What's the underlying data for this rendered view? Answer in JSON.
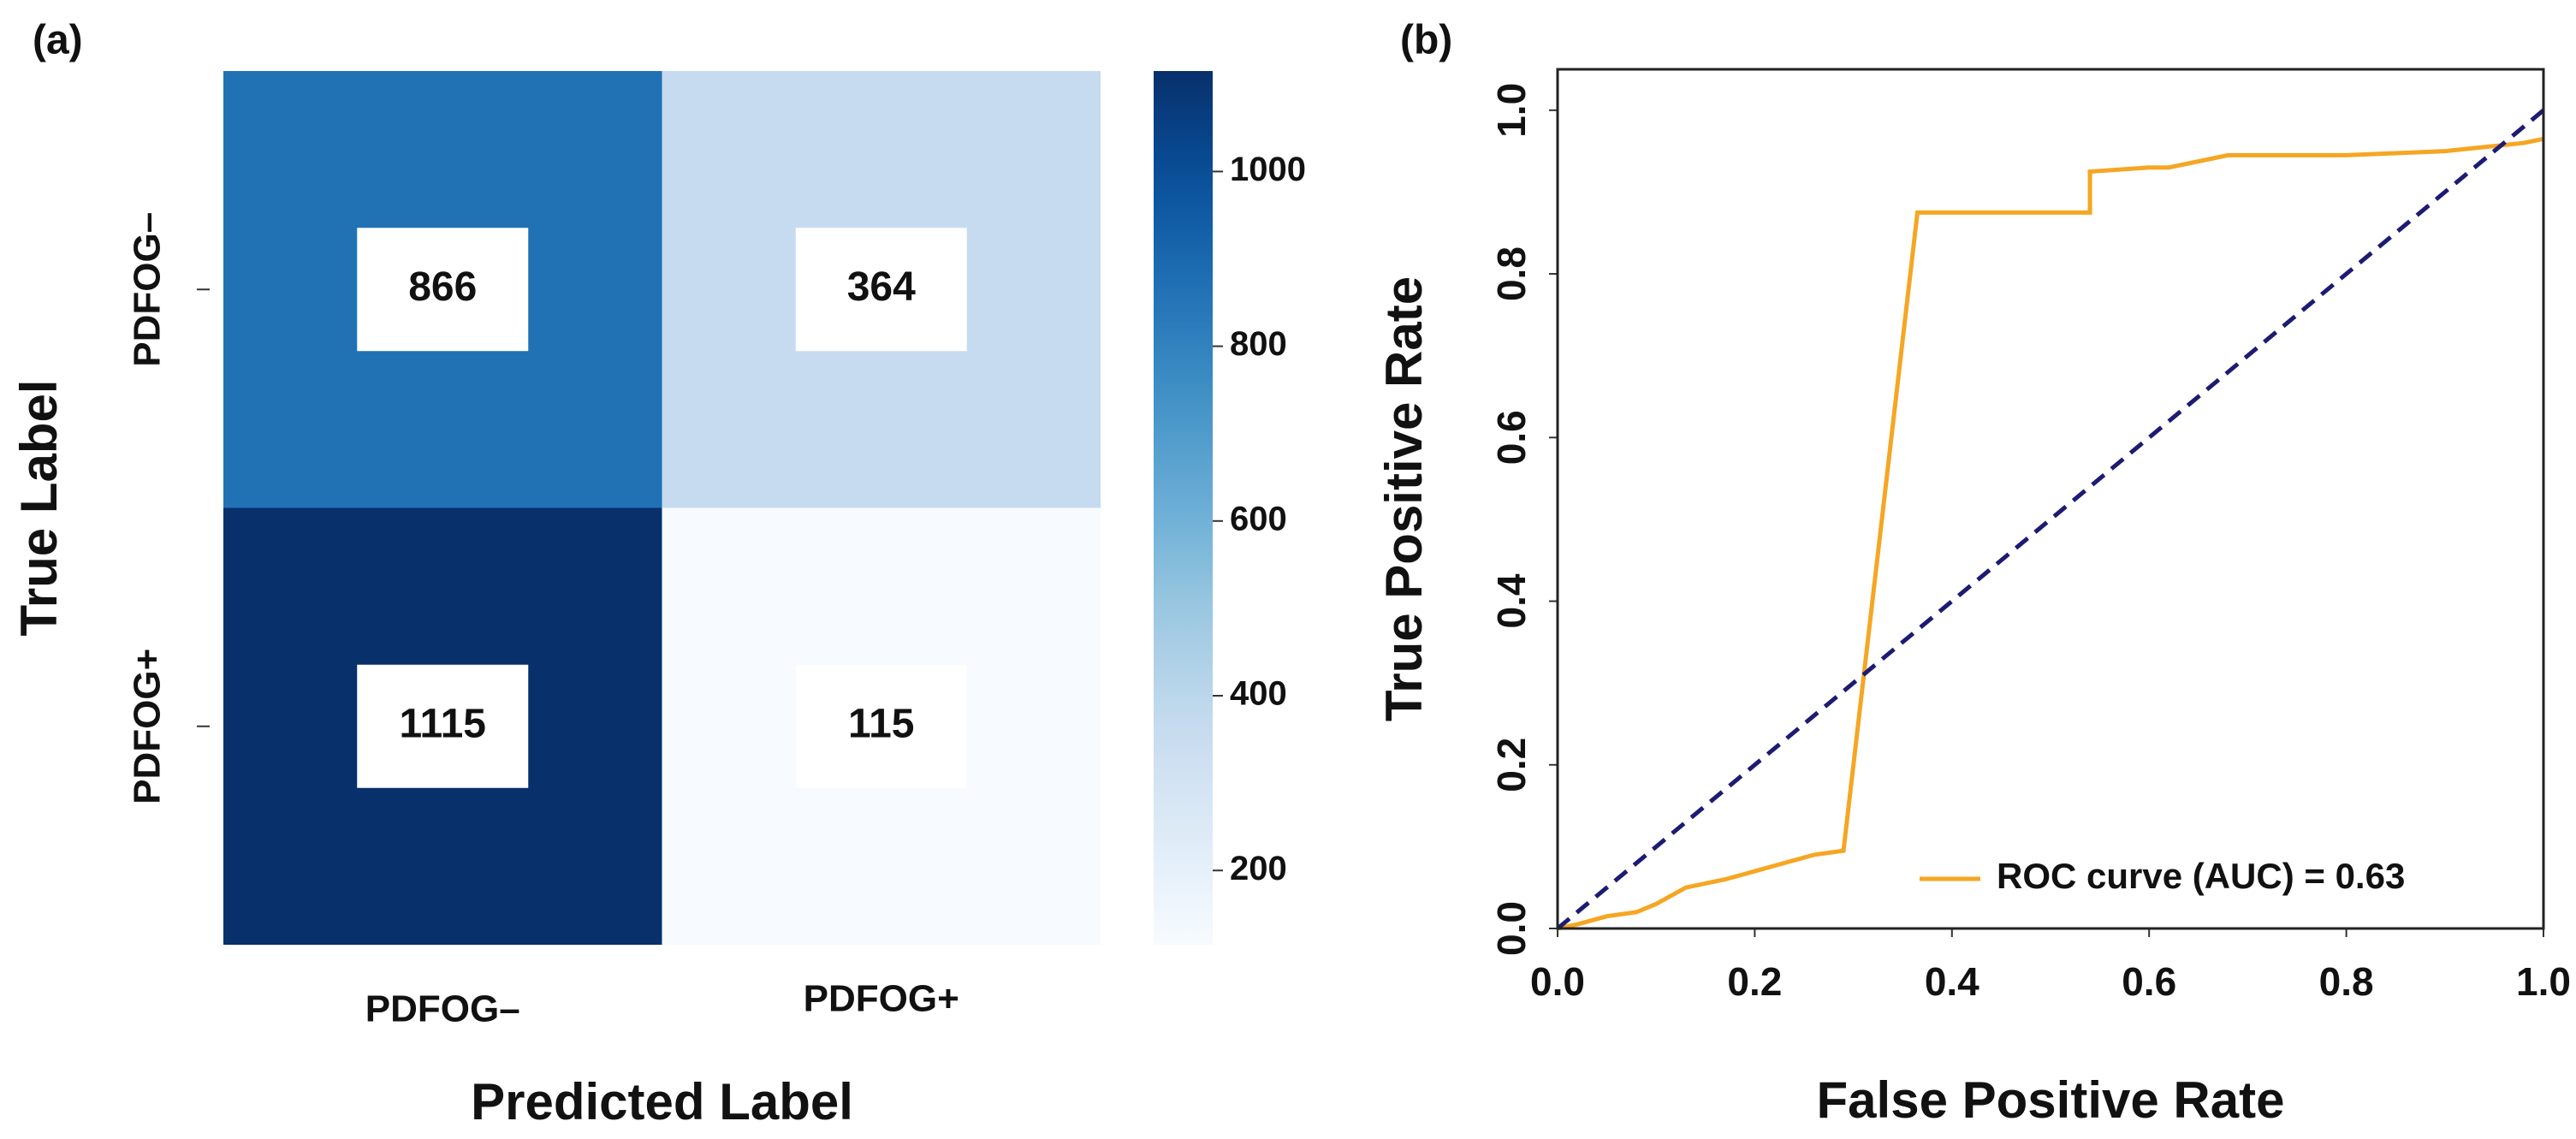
{
  "chart_data": [
    {
      "type": "heatmap",
      "panel": "(a)",
      "x_label": "Predicted Label",
      "y_label": "True Label",
      "x_categories": [
        "PDFOG–",
        "PDFOG+"
      ],
      "y_categories": [
        "PDFOG–",
        "PDFOG+"
      ],
      "values": [
        [
          866,
          364
        ],
        [
          1115,
          115
        ]
      ],
      "colormap": "Blues",
      "clim": [
        115,
        1115
      ],
      "cticks": [
        200,
        400,
        600,
        800,
        1000
      ]
    },
    {
      "type": "line",
      "panel": "(b)",
      "x_label": "False Positive Rate",
      "y_label": "True Positive Rate",
      "xlim": [
        0,
        1
      ],
      "ylim": [
        0,
        1.05
      ],
      "xticks": [
        {
          "value": 0,
          "label": "0.0"
        },
        0.2,
        0.4,
        0.6,
        0.8,
        {
          "value": 1,
          "label": "1.0"
        }
      ],
      "yticks": [
        {
          "value": 0,
          "label": "0.0"
        },
        0.2,
        0.4,
        0.6,
        0.8,
        {
          "value": 1,
          "label": "1.0"
        }
      ],
      "legend": "lower right",
      "series": [
        {
          "name": "ROC curve (AUC) = 0.63",
          "color": "#f5a623",
          "x": [
            0,
            0.02,
            0.05,
            0.08,
            0.1,
            0.13,
            0.17,
            0.2,
            0.23,
            0.26,
            0.29,
            0.365,
            0.54,
            0.54,
            0.6,
            0.62,
            0.68,
            0.8,
            0.9,
            0.98,
            1.0
          ],
          "values": [
            0,
            0.005,
            0.015,
            0.02,
            0.03,
            0.05,
            0.06,
            0.07,
            0.08,
            0.09,
            0.095,
            0.875,
            0.875,
            0.925,
            0.93,
            0.93,
            0.945,
            0.945,
            0.95,
            0.96,
            0.965
          ]
        },
        {
          "color": "#1c1c72",
          "dash": true,
          "x": [
            0,
            1
          ],
          "values": [
            0,
            1
          ]
        }
      ]
    }
  ]
}
